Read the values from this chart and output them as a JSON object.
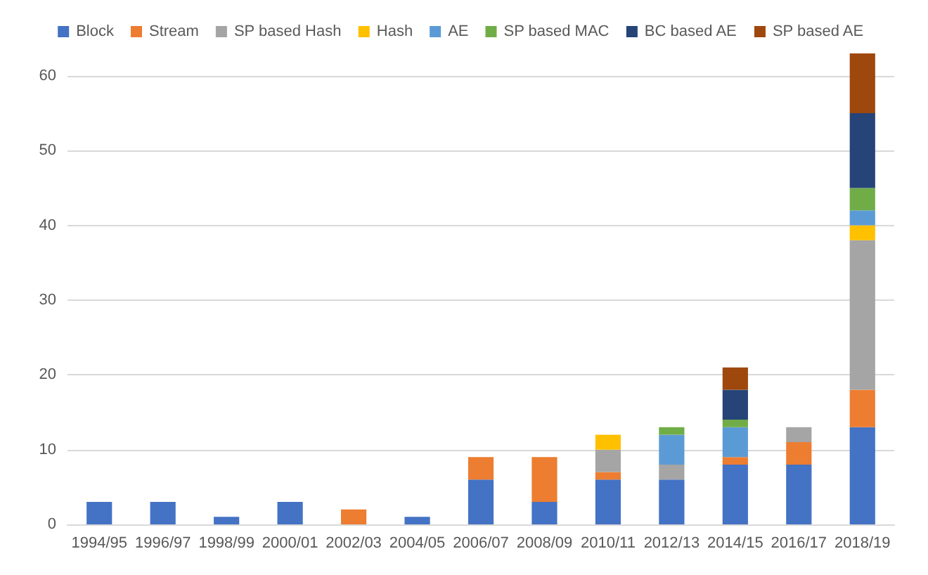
{
  "chart_data": {
    "type": "bar",
    "stacked": true,
    "categories": [
      "1994/95",
      "1996/97",
      "1998/99",
      "2000/01",
      "2002/03",
      "2004/05",
      "2006/07",
      "2008/09",
      "2010/11",
      "2012/13",
      "2014/15",
      "2016/17",
      "2018/19"
    ],
    "series": [
      {
        "name": "Block",
        "color": "#4472c4",
        "values": [
          3,
          3,
          1,
          3,
          null,
          1,
          6,
          3,
          6,
          6,
          8,
          8,
          13
        ]
      },
      {
        "name": "Stream",
        "color": "#ed7d31",
        "values": [
          null,
          null,
          null,
          null,
          2,
          null,
          3,
          6,
          1,
          null,
          1,
          3,
          5
        ]
      },
      {
        "name": "SP based Hash",
        "color": "#a5a5a5",
        "values": [
          null,
          null,
          null,
          null,
          null,
          null,
          null,
          null,
          3,
          2,
          null,
          2,
          20
        ]
      },
      {
        "name": "Hash",
        "color": "#ffc000",
        "values": [
          null,
          null,
          null,
          null,
          null,
          null,
          null,
          null,
          2,
          null,
          null,
          null,
          2
        ]
      },
      {
        "name": "AE",
        "color": "#5b9bd5",
        "values": [
          null,
          null,
          null,
          null,
          null,
          null,
          null,
          null,
          null,
          4,
          4,
          null,
          2
        ]
      },
      {
        "name": "SP based MAC",
        "color": "#70ad47",
        "values": [
          null,
          null,
          null,
          null,
          null,
          null,
          null,
          null,
          null,
          1,
          1,
          null,
          3
        ]
      },
      {
        "name": "BC based AE",
        "color": "#264478",
        "values": [
          null,
          null,
          null,
          null,
          null,
          null,
          null,
          null,
          null,
          null,
          4,
          null,
          10
        ]
      },
      {
        "name": "SP based AE",
        "color": "#9e480e",
        "values": [
          null,
          null,
          null,
          null,
          null,
          null,
          null,
          null,
          null,
          null,
          3,
          null,
          8
        ]
      }
    ],
    "ylim": [
      0,
      63
    ],
    "yticks": [
      0,
      10,
      20,
      30,
      40,
      50,
      60
    ],
    "grid": "y",
    "legend": "top"
  }
}
